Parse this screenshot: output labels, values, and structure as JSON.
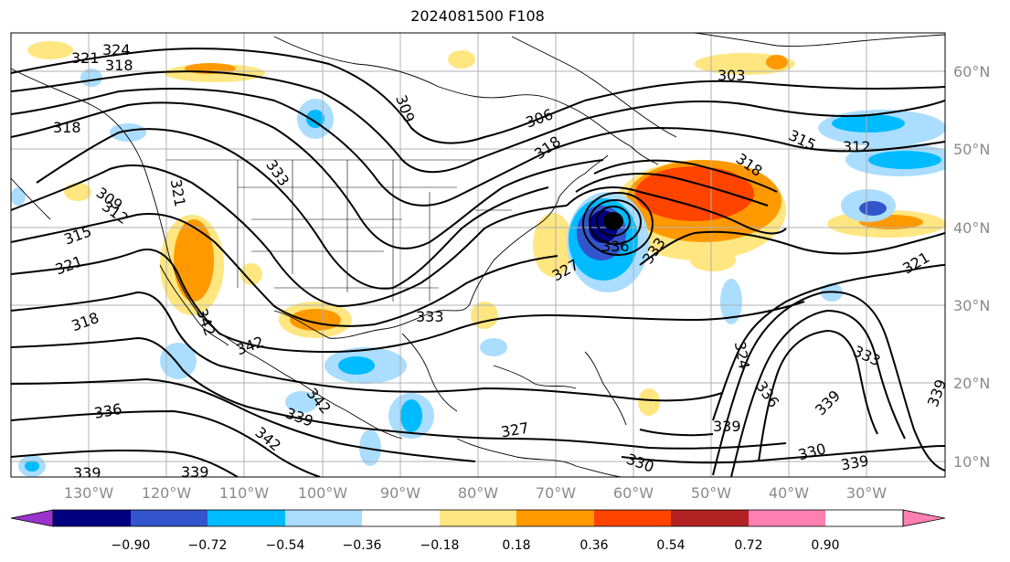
{
  "title": "2024081500 F108",
  "lon_ticks": [
    "130°W",
    "120°W",
    "110°W",
    "100°W",
    "90°W",
    "80°W",
    "70°W",
    "60°W",
    "50°W",
    "40°W",
    "30°W"
  ],
  "lat_ticks": [
    "60°N",
    "50°N",
    "40°N",
    "30°N",
    "20°N",
    "10°N"
  ],
  "contour_labels": [
    "324",
    "321",
    "318",
    "318",
    "309",
    "306",
    "303",
    "315",
    "312",
    "318",
    "318",
    "312",
    "309",
    "321",
    "333",
    "315",
    "321",
    "318",
    "327",
    "336",
    "333",
    "333",
    "342",
    "342",
    "342",
    "339",
    "336",
    "339",
    "342",
    "327",
    "330",
    "330",
    "339",
    "339",
    "324",
    "336",
    "339",
    "321",
    "333",
    "339"
  ],
  "colorbar": {
    "ticks": [
      "−0.90",
      "−0.72",
      "−0.54",
      "−0.36",
      "−0.18",
      "0.18",
      "0.36",
      "0.54",
      "0.72",
      "0.90"
    ],
    "colors": [
      "#9933cc",
      "#000080",
      "#3355cc",
      "#00bbff",
      "#aaddff",
      "#ffffff",
      "#ffe680",
      "#ff9900",
      "#ff4400",
      "#b22222",
      "#ff80b0"
    ]
  }
}
